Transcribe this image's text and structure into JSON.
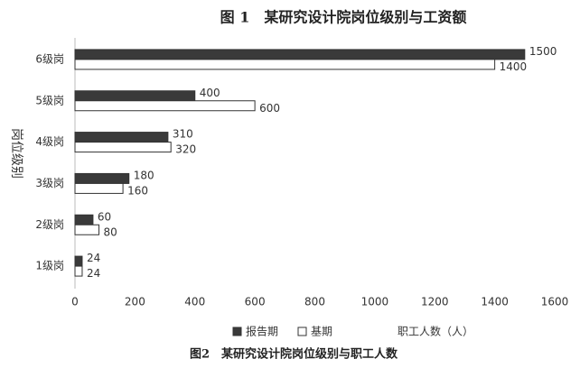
{
  "chart_data": {
    "type": "hbar",
    "title": "图 1　某研究设计院岗位级别与工资额",
    "caption": "图2　某研究设计院岗位级别与职工人数",
    "ylabel": "岗位级别",
    "xlabel": "职工人数（人）",
    "categories": [
      "1级岗",
      "2级岗",
      "3级岗",
      "4级岗",
      "5级岗",
      "6级岗"
    ],
    "series": [
      {
        "name": "报告期",
        "color": "#3a3a3a",
        "values": [
          24,
          60,
          180,
          310,
          400,
          1500
        ]
      },
      {
        "name": "基期",
        "color": "#ffffff",
        "values": [
          24,
          80,
          160,
          320,
          600,
          1400
        ]
      }
    ],
    "xlim": [
      0,
      1600
    ],
    "xticks": [
      0,
      200,
      400,
      600,
      800,
      1000,
      1200,
      1400,
      1600
    ],
    "grid": false
  }
}
